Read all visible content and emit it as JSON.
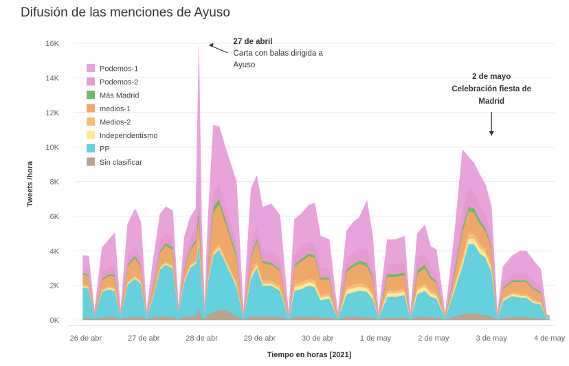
{
  "title": "Difusión de las menciones de Ayuso",
  "chart_data": {
    "type": "area",
    "stacked": true,
    "xlabel": "Tiempo en horas [2021]",
    "ylabel": "Tweets /hora",
    "ylim": [
      0,
      16000
    ],
    "yticks": [
      0,
      2000,
      4000,
      6000,
      8000,
      10000,
      12000,
      14000,
      16000
    ],
    "ytick_labels": [
      "0K",
      "2K",
      "4K",
      "6K",
      "8K",
      "10K",
      "12K",
      "14K",
      "16K"
    ],
    "xlim": [
      -0.2,
      8.1
    ],
    "xticks": [
      0,
      1,
      2,
      3,
      4,
      5,
      6,
      7,
      8
    ],
    "xtick_labels": [
      "26 de abr",
      "27 de abr",
      "28 de abr",
      "29 de abr",
      "30 de abr",
      "1 de may",
      "2 de may",
      "3 de may",
      "4 de may"
    ],
    "legend_position": "top-left",
    "grid": "horizontal",
    "x": [
      -0.05,
      0.05,
      0.15,
      0.28,
      0.4,
      0.5,
      0.6,
      0.72,
      0.85,
      0.95,
      1.05,
      1.15,
      1.28,
      1.38,
      1.5,
      1.6,
      1.7,
      1.8,
      1.9,
      1.95,
      2.0,
      2.05,
      2.1,
      2.2,
      2.3,
      2.42,
      2.6,
      2.72,
      2.85,
      2.95,
      3.05,
      3.2,
      3.35,
      3.5,
      3.6,
      3.72,
      3.85,
      3.95,
      4.05,
      4.2,
      4.35,
      4.5,
      4.6,
      4.72,
      4.85,
      4.95,
      5.05,
      5.2,
      5.35,
      5.5,
      5.6,
      5.72,
      5.85,
      5.95,
      6.05,
      6.2,
      6.35,
      6.5,
      6.6,
      6.7,
      6.8,
      6.9,
      7.0,
      7.1,
      7.2,
      7.35,
      7.5,
      7.6,
      7.72,
      7.85,
      7.95,
      8.0
    ],
    "series": [
      {
        "name": "Sin clasificar",
        "color": "#b9a38f",
        "values": [
          100,
          120,
          60,
          150,
          180,
          200,
          60,
          150,
          200,
          200,
          60,
          150,
          220,
          220,
          180,
          40,
          200,
          220,
          250,
          700,
          200,
          60,
          300,
          450,
          600,
          550,
          250,
          20,
          200,
          250,
          200,
          200,
          200,
          20,
          200,
          200,
          200,
          200,
          150,
          150,
          20,
          200,
          200,
          200,
          150,
          150,
          20,
          150,
          150,
          150,
          20,
          200,
          200,
          150,
          150,
          20,
          200,
          350,
          400,
          400,
          350,
          300,
          200,
          20,
          100,
          200,
          200,
          200,
          100,
          100,
          20,
          20
        ]
      },
      {
        "name": "PP",
        "color": "#64d1dc",
        "values": [
          1800,
          1700,
          200,
          1500,
          1600,
          1500,
          200,
          1900,
          2200,
          1900,
          200,
          1000,
          2700,
          3000,
          2800,
          400,
          2000,
          2800,
          3000,
          3800,
          2000,
          350,
          1800,
          3300,
          3500,
          2700,
          1700,
          150,
          2200,
          2800,
          1800,
          1800,
          1500,
          100,
          1500,
          1600,
          1800,
          1700,
          1000,
          1100,
          100,
          1300,
          1400,
          1500,
          1500,
          1100,
          100,
          1200,
          1200,
          1300,
          100,
          1300,
          1500,
          1200,
          1100,
          100,
          1400,
          2800,
          4000,
          4000,
          3500,
          3300,
          2600,
          100,
          1000,
          1200,
          1100,
          1100,
          900,
          800,
          100,
          100
        ]
      },
      {
        "name": "Independentismo",
        "color": "#ffe894",
        "values": [
          50,
          50,
          10,
          50,
          80,
          80,
          10,
          80,
          80,
          80,
          10,
          50,
          80,
          80,
          80,
          10,
          80,
          100,
          100,
          100,
          80,
          10,
          80,
          100,
          100,
          100,
          100,
          10,
          150,
          150,
          100,
          100,
          100,
          10,
          200,
          200,
          200,
          200,
          150,
          150,
          10,
          250,
          250,
          250,
          200,
          150,
          10,
          200,
          200,
          200,
          10,
          250,
          250,
          200,
          150,
          10,
          150,
          250,
          300,
          300,
          300,
          250,
          200,
          10,
          100,
          100,
          100,
          100,
          80,
          80,
          10,
          10
        ]
      },
      {
        "name": "Medios-2",
        "color": "#f7be7a",
        "values": [
          100,
          100,
          20,
          100,
          100,
          100,
          20,
          100,
          100,
          100,
          20,
          100,
          100,
          100,
          100,
          20,
          100,
          100,
          150,
          200,
          100,
          20,
          150,
          200,
          200,
          150,
          150,
          20,
          200,
          200,
          200,
          200,
          150,
          20,
          200,
          200,
          200,
          200,
          150,
          150,
          20,
          150,
          200,
          200,
          150,
          150,
          20,
          150,
          150,
          150,
          20,
          150,
          150,
          150,
          150,
          20,
          200,
          300,
          300,
          300,
          300,
          250,
          200,
          20,
          100,
          100,
          100,
          100,
          100,
          80,
          20,
          20
        ]
      },
      {
        "name": "medios-1",
        "color": "#f0a868",
        "values": [
          600,
          550,
          60,
          500,
          600,
          650,
          60,
          900,
          1000,
          800,
          60,
          400,
          800,
          900,
          900,
          60,
          500,
          800,
          1000,
          1200,
          800,
          60,
          600,
          2200,
          2300,
          2000,
          1400,
          60,
          800,
          1200,
          1000,
          900,
          900,
          60,
          1000,
          1200,
          1300,
          1300,
          900,
          800,
          60,
          900,
          1000,
          1100,
          1100,
          900,
          60,
          800,
          800,
          800,
          60,
          800,
          900,
          700,
          600,
          60,
          500,
          1400,
          1300,
          1200,
          1100,
          1000,
          900,
          60,
          500,
          600,
          700,
          700,
          600,
          500,
          60,
          40
        ]
      },
      {
        "name": "Más Madrid",
        "color": "#72b966",
        "values": [
          80,
          80,
          10,
          80,
          100,
          100,
          10,
          100,
          150,
          100,
          10,
          60,
          120,
          150,
          150,
          10,
          100,
          120,
          150,
          500,
          150,
          10,
          100,
          300,
          300,
          250,
          200,
          10,
          120,
          150,
          120,
          120,
          100,
          10,
          120,
          150,
          150,
          150,
          100,
          100,
          10,
          150,
          150,
          200,
          200,
          120,
          10,
          150,
          150,
          150,
          10,
          200,
          200,
          150,
          120,
          10,
          150,
          250,
          250,
          250,
          250,
          200,
          150,
          10,
          80,
          100,
          100,
          100,
          80,
          80,
          10,
          10
        ]
      },
      {
        "name": "Podemos-2",
        "color": "#e59ad2",
        "values": [
          300,
          300,
          40,
          400,
          500,
          400,
          40,
          500,
          500,
          500,
          40,
          300,
          600,
          600,
          600,
          40,
          500,
          600,
          800,
          2500,
          500,
          40,
          600,
          900,
          900,
          800,
          600,
          40,
          700,
          800,
          600,
          600,
          600,
          40,
          600,
          700,
          700,
          700,
          600,
          500,
          40,
          600,
          700,
          700,
          800,
          600,
          40,
          600,
          600,
          600,
          40,
          700,
          700,
          500,
          500,
          40,
          500,
          1000,
          1100,
          1000,
          900,
          800,
          700,
          40,
          300,
          400,
          400,
          400,
          400,
          300,
          40,
          20
        ]
      },
      {
        "name": "Podemos-1",
        "color": "#e9a3dc",
        "values": [
          700,
          800,
          80,
          1400,
          1500,
          2000,
          80,
          1800,
          2200,
          2000,
          80,
          1100,
          1500,
          1500,
          1500,
          80,
          1300,
          1200,
          1000,
          6800,
          1600,
          80,
          1700,
          3800,
          3300,
          3300,
          3600,
          80,
          3200,
          2800,
          2500,
          2800,
          2500,
          80,
          2000,
          1900,
          2100,
          2300,
          1800,
          1700,
          80,
          1600,
          1700,
          1800,
          2800,
          1700,
          80,
          1400,
          1400,
          1500,
          80,
          1400,
          1600,
          1200,
          1300,
          80,
          1500,
          3500,
          1800,
          1600,
          1700,
          1700,
          1600,
          80,
          900,
          1000,
          1300,
          1300,
          1200,
          1000,
          80,
          40
        ]
      }
    ],
    "legend": [
      "Podemos-1",
      "Podemos-2",
      "Más Madrid",
      "medios-1",
      "Medios-2",
      "Independentismo",
      "PP",
      "Sin clasificar"
    ],
    "annotations": [
      {
        "x": 2.0,
        "y": 16000,
        "lines": [
          "27 de abril",
          "Carta con balas dirigida a",
          "Ayuso"
        ],
        "bold_lines": 1
      },
      {
        "x": 7.0,
        "y": 10400,
        "lines": [
          "2 de mayo",
          "Celebración fiesta de",
          "Madrid"
        ],
        "bold_lines": 3
      }
    ]
  }
}
